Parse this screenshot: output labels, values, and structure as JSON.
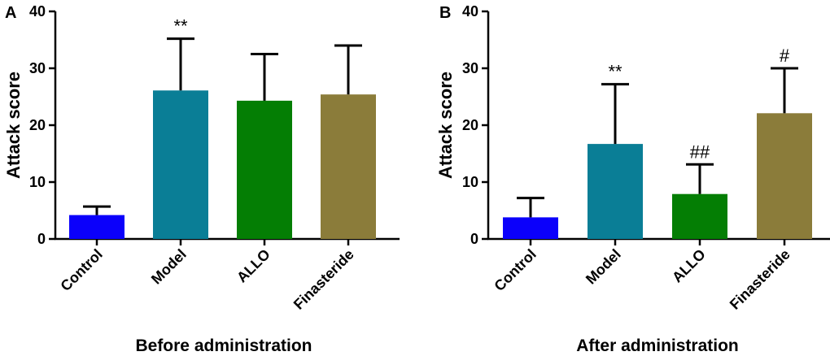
{
  "chart_data": [
    {
      "type": "bar",
      "panel_label": "A",
      "title": "",
      "xlabel": "Before administration",
      "ylabel": "Attack score",
      "ylim": [
        0,
        40
      ],
      "yticks": [
        "0",
        "10",
        "20",
        "30",
        "40"
      ],
      "categories": [
        "Control",
        "Model",
        "ALLO",
        "Finasteride"
      ],
      "values": [
        4.2,
        26.1,
        24.3,
        25.4
      ],
      "errors": [
        1.5,
        9.1,
        8.2,
        8.6
      ],
      "colors": [
        "#0b00fb",
        "#0a7e96",
        "#047e04",
        "#8b7c3a"
      ],
      "annotations": [
        "",
        "**",
        "",
        ""
      ]
    },
    {
      "type": "bar",
      "panel_label": "B",
      "title": "",
      "xlabel": "After administration",
      "ylabel": "Attack score",
      "ylim": [
        0,
        40
      ],
      "yticks": [
        "0",
        "10",
        "20",
        "30",
        "40"
      ],
      "categories": [
        "Control",
        "Model",
        "ALLO",
        "Finasteride"
      ],
      "values": [
        3.8,
        16.7,
        7.9,
        22.1
      ],
      "errors": [
        3.4,
        10.5,
        5.2,
        7.9
      ],
      "colors": [
        "#0b00fb",
        "#0a7e96",
        "#047e04",
        "#8b7c3a"
      ],
      "annotations": [
        "",
        "**",
        "##",
        "#"
      ]
    }
  ]
}
